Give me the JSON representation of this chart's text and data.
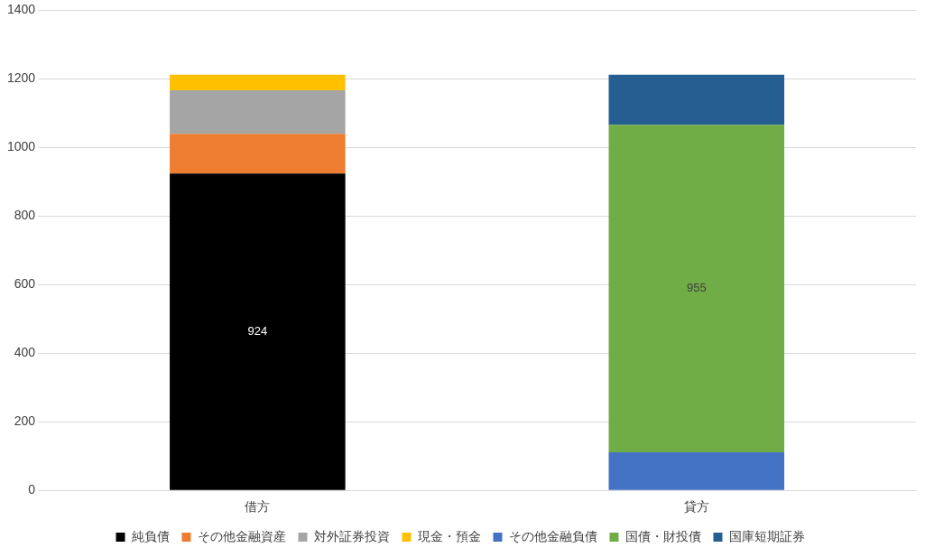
{
  "chart_data": {
    "type": "bar",
    "stacked": true,
    "categories": [
      "借方",
      "貸方"
    ],
    "series": [
      {
        "name": "純負債",
        "color": "#000000",
        "values": [
          924,
          null
        ],
        "value_labels": [
          "924",
          null
        ]
      },
      {
        "name": "その他金融資産",
        "color": "#ed7d31",
        "values": [
          116,
          null
        ]
      },
      {
        "name": "対外証券投資",
        "color": "#a5a5a5",
        "values": [
          127,
          null
        ]
      },
      {
        "name": "現金・預金",
        "color": "#ffc000",
        "values": [
          45,
          null
        ]
      },
      {
        "name": "その他金融負債",
        "color": "#4472c4",
        "values": [
          null,
          111
        ]
      },
      {
        "name": "国債・財投債",
        "color": "#70ad47",
        "values": [
          null,
          955
        ],
        "value_labels": [
          null,
          "955"
        ]
      },
      {
        "name": "国庫短期証券",
        "color": "#255e91",
        "values": [
          null,
          146
        ]
      }
    ],
    "ylim": [
      0,
      1400
    ],
    "yticks": [
      0,
      200,
      400,
      600,
      800,
      1000,
      1200,
      1400
    ],
    "grid": "y",
    "legend": "bottom"
  }
}
